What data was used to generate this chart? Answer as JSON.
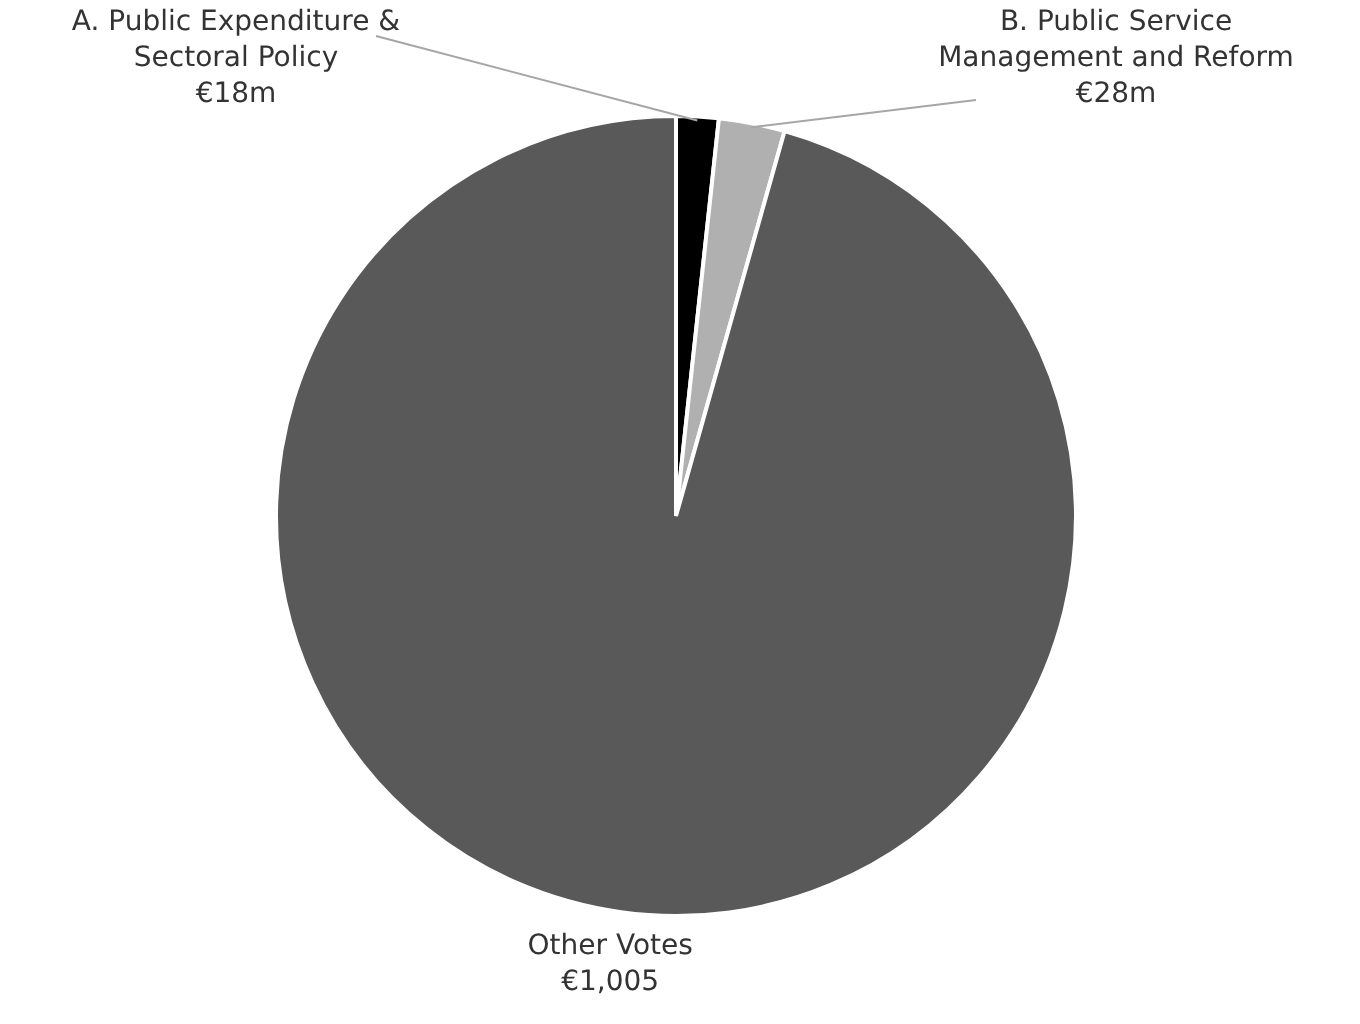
{
  "chart_data": {
    "type": "pie",
    "categories": [
      "A. Public Expenditure & Sectoral Policy",
      "B. Public Service Management and Reform",
      "Other Votes"
    ],
    "values": [
      18,
      28,
      1005
    ],
    "colors": [
      "#000000",
      "#b0b0b0",
      "#595959"
    ],
    "value_labels": [
      "€18m",
      "€28m",
      "€1,005"
    ]
  }
}
